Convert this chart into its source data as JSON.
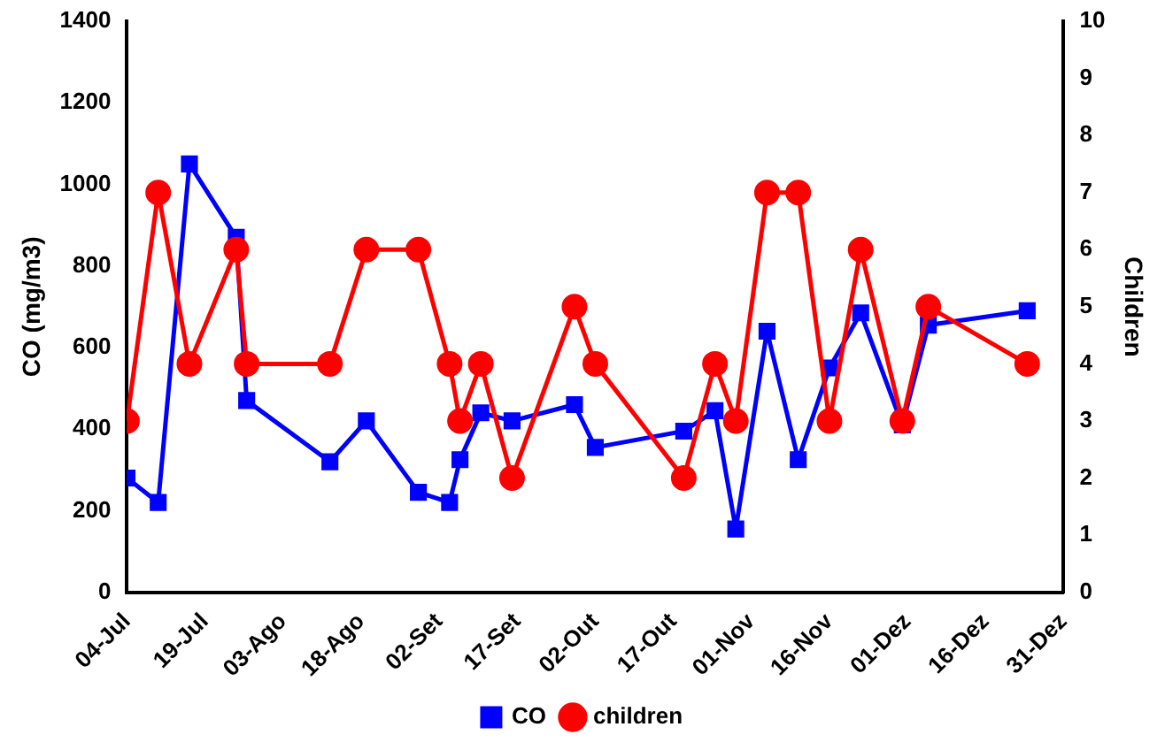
{
  "chart_data": {
    "type": "line",
    "x": [
      "--07-04",
      "--07-10",
      "--07-16",
      "--07-25",
      "--07-27",
      "--08-12",
      "--08-19",
      "--08-29",
      "--09-04",
      "--09-06",
      "--09-10",
      "--09-16",
      "--09-28",
      "--10-02",
      "--10-19",
      "--10-25",
      "--10-29",
      "--11-04",
      "--11-10",
      "--11-16",
      "--11-22",
      "--11-30",
      "--12-05",
      "--12-24"
    ],
    "series": [
      {
        "name": "CO",
        "color": "#0000ff",
        "marker": "square",
        "values": [
          280,
          220,
          1050,
          870,
          470,
          320,
          420,
          245,
          220,
          325,
          440,
          420,
          460,
          355,
          395,
          445,
          155,
          640,
          325,
          550,
          685,
          410,
          655,
          690
        ]
      },
      {
        "name": "children",
        "color": "#ff0000",
        "marker": "circle",
        "axis": "y2",
        "values": [
          3,
          7,
          4,
          6,
          4,
          4,
          6,
          6,
          4,
          3,
          4,
          2,
          5,
          4,
          2,
          4,
          3,
          7,
          7,
          3,
          6,
          3,
          5,
          4
        ]
      }
    ],
    "xlim": [
      "--07-04",
      "--12-31"
    ],
    "xticks": [
      {
        "value": "--07-04",
        "label": "04-Jul"
      },
      {
        "value": "--07-19",
        "label": "19-Jul"
      },
      {
        "value": "--08-03",
        "label": "03-Ago"
      },
      {
        "value": "--08-18",
        "label": "18-Ago"
      },
      {
        "value": "--09-02",
        "label": "02-Set"
      },
      {
        "value": "--09-17",
        "label": "17-Set"
      },
      {
        "value": "--10-02",
        "label": "02-Out"
      },
      {
        "value": "--10-17",
        "label": "17-Out"
      },
      {
        "value": "--11-01",
        "label": "01-Nov"
      },
      {
        "value": "--11-16",
        "label": "16-Nov"
      },
      {
        "value": "--12-01",
        "label": "01-Dez"
      },
      {
        "value": "--12-16",
        "label": "16-Dez"
      },
      {
        "value": "--12-31",
        "label": "31-Dez"
      }
    ],
    "ylabel": "CO (mg/m3)",
    "ylim": [
      0,
      1400
    ],
    "yticks": [
      0,
      200,
      400,
      600,
      800,
      1000,
      1200,
      1400
    ],
    "y2label": "Children",
    "y2lim": [
      0,
      10
    ],
    "y2ticks": [
      0,
      1,
      2,
      3,
      4,
      5,
      6,
      7,
      8,
      9,
      10
    ],
    "grid": false,
    "legend": "bottom",
    "line_style": "solid"
  }
}
